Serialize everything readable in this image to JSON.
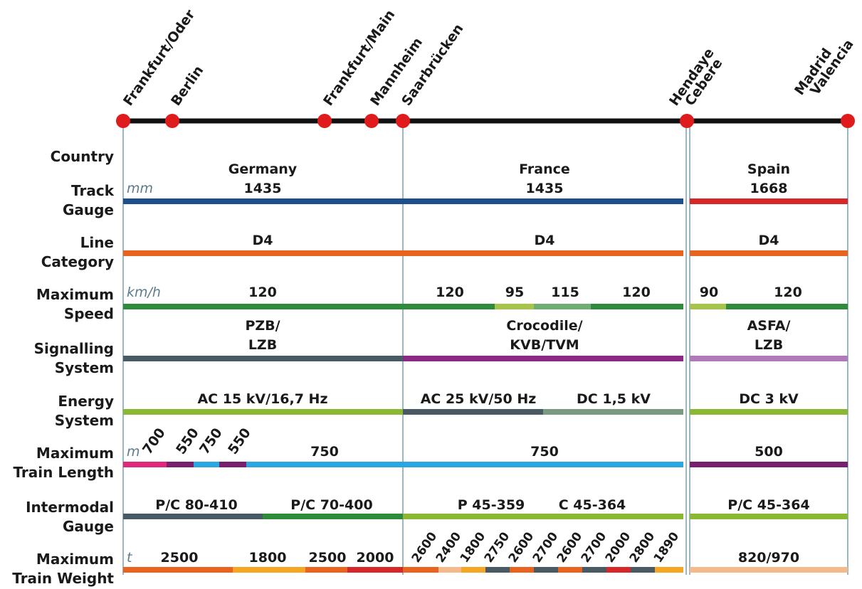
{
  "route": {
    "cities": [
      "Frankfurt/Oder",
      "Berlin",
      "Frankfurt/Main",
      "Mannheim",
      "Saarbrücken",
      "Hendaye",
      "Cebere",
      "Madrid",
      "Valencia"
    ]
  },
  "rows": {
    "country": "Country",
    "track_gauge": [
      "Track",
      "Gauge"
    ],
    "line_category": [
      "Line",
      "Category"
    ],
    "maximum_speed": [
      "Maximum",
      "Speed"
    ],
    "signalling_system": [
      "Signalling",
      "System"
    ],
    "energy_system": [
      "Energy",
      "System"
    ],
    "max_train_length": [
      "Maximum",
      "Train Length"
    ],
    "intermodal_gauge": [
      "Intermodal",
      "Gauge"
    ],
    "max_train_weight": [
      "Maximum",
      "Train Weight"
    ]
  },
  "units": {
    "mm": "mm",
    "kmh": "km/h",
    "m": "m",
    "t": "t"
  },
  "germany": {
    "country": "Germany",
    "gauge": "1435",
    "category": "D4",
    "speed": "120",
    "signalling": [
      "PZB/",
      "LZB"
    ],
    "energy": "AC 15 kV/16,7 Hz",
    "lengths": [
      "700",
      "550",
      "750",
      "550"
    ],
    "length_main": "750",
    "intermodal": [
      "P/C 80-410",
      "P/C 70-400"
    ],
    "weights": [
      "2500",
      "1800",
      "2500",
      "2000"
    ]
  },
  "france": {
    "country": "France",
    "gauge": "1435",
    "category": "D4",
    "speeds": [
      "120",
      "95",
      "115",
      "120"
    ],
    "signalling": [
      "Crocodile/",
      "KVB/TVM"
    ],
    "energy": [
      "AC 25 kV/50 Hz",
      "DC 1,5 kV"
    ],
    "length": "750",
    "intermodal": [
      "P 45-359",
      "C 45-364"
    ],
    "weights": [
      "2600",
      "2400",
      "1800",
      "2750",
      "2600",
      "2700",
      "2600",
      "2700",
      "2000",
      "2800",
      "1890"
    ]
  },
  "spain": {
    "country": "Spain",
    "gauge": "1668",
    "category": "D4",
    "speeds": [
      "90",
      "120"
    ],
    "signalling": [
      "ASFA/",
      "LZB"
    ],
    "energy": "DC 3 kV",
    "length": "500",
    "intermodal": "P/C 45-364",
    "weight": "820/970"
  },
  "colors": {
    "gauge_std": "#1f4e8c",
    "gauge_iberian": "#d62828",
    "category": "#e8641e",
    "speed_green": "#2e8b3a",
    "speed_lightgreen": "#a6c44a",
    "speed_sage": "#6fae72",
    "signal_grey": "#4a5a62",
    "signal_purple": "#8a2a86",
    "signal_lilac": "#b07ab8",
    "energy_lime": "#8ab832",
    "energy_grey": "#4a5a62",
    "energy_sage": "#7a9a82",
    "length_pink": "#e0287a",
    "length_purple": "#7a1f6e",
    "length_blue": "#2aa7e0",
    "weight_orange": "#e8641e",
    "weight_amber": "#f5a623",
    "weight_red": "#d62828",
    "weight_peach": "#f5b98a",
    "weight_grey": "#4a5a62"
  }
}
